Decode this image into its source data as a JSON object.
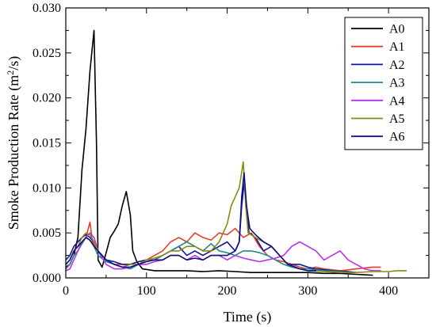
{
  "chart_data": {
    "type": "line",
    "xlabel": "Time (s)",
    "ylabel": "Smoke Production Rate (m",
    "ylabel_sup": "2",
    "ylabel_tail": "/s)",
    "xlim": [
      0,
      450
    ],
    "ylim": [
      0,
      0.03
    ],
    "x_ticks": [
      0,
      100,
      200,
      300,
      400
    ],
    "x_tick_labels": [
      "0",
      "100",
      "200",
      "300",
      "400"
    ],
    "y_ticks": [
      0.0,
      0.005,
      0.01,
      0.015,
      0.02,
      0.025,
      0.03
    ],
    "y_tick_labels": [
      "0.000",
      "0.005",
      "0.010",
      "0.015",
      "0.020",
      "0.025",
      "0.030"
    ],
    "grid": false,
    "legend_position": "top-right",
    "series": [
      {
        "name": "A0",
        "color": "#000000",
        "points": [
          [
            0,
            0.0012
          ],
          [
            5,
            0.0015
          ],
          [
            10,
            0.0025
          ],
          [
            15,
            0.0045
          ],
          [
            20,
            0.012
          ],
          [
            25,
            0.0165
          ],
          [
            30,
            0.023
          ],
          [
            35,
            0.0275
          ],
          [
            38,
            0.015
          ],
          [
            40,
            0.002
          ],
          [
            45,
            0.0012
          ],
          [
            50,
            0.0028
          ],
          [
            55,
            0.0045
          ],
          [
            60,
            0.0052
          ],
          [
            65,
            0.006
          ],
          [
            70,
            0.008
          ],
          [
            75,
            0.0096
          ],
          [
            80,
            0.007
          ],
          [
            83,
            0.003
          ],
          [
            88,
            0.0018
          ],
          [
            95,
            0.001
          ],
          [
            110,
            0.0008
          ],
          [
            130,
            0.0008
          ],
          [
            150,
            0.0008
          ],
          [
            170,
            0.0007
          ],
          [
            190,
            0.0008
          ],
          [
            210,
            0.0007
          ],
          [
            230,
            0.0006
          ],
          [
            260,
            0.0006
          ],
          [
            290,
            0.0006
          ],
          [
            300,
            0.0006
          ],
          [
            320,
            0.0005
          ],
          [
            340,
            0.0005
          ],
          [
            360,
            0.0004
          ],
          [
            380,
            0.0003
          ]
        ]
      },
      {
        "name": "A1",
        "color": "#e0402a",
        "points": [
          [
            0,
            0.001
          ],
          [
            5,
            0.0015
          ],
          [
            10,
            0.0025
          ],
          [
            15,
            0.003
          ],
          [
            20,
            0.004
          ],
          [
            25,
            0.0045
          ],
          [
            30,
            0.0062
          ],
          [
            33,
            0.004
          ],
          [
            36,
            0.0035
          ],
          [
            40,
            0.003
          ],
          [
            45,
            0.0025
          ],
          [
            50,
            0.002
          ],
          [
            60,
            0.0015
          ],
          [
            70,
            0.0015
          ],
          [
            80,
            0.0015
          ],
          [
            90,
            0.0018
          ],
          [
            100,
            0.002
          ],
          [
            110,
            0.0025
          ],
          [
            120,
            0.003
          ],
          [
            130,
            0.004
          ],
          [
            140,
            0.0045
          ],
          [
            150,
            0.004
          ],
          [
            160,
            0.005
          ],
          [
            170,
            0.0045
          ],
          [
            180,
            0.0042
          ],
          [
            190,
            0.005
          ],
          [
            200,
            0.0048
          ],
          [
            210,
            0.0055
          ],
          [
            220,
            0.0045
          ],
          [
            230,
            0.005
          ],
          [
            240,
            0.0035
          ],
          [
            250,
            0.0025
          ],
          [
            260,
            0.002
          ],
          [
            270,
            0.0018
          ],
          [
            280,
            0.0015
          ],
          [
            290,
            0.0012
          ],
          [
            300,
            0.001
          ],
          [
            310,
            0.0012
          ],
          [
            320,
            0.001
          ],
          [
            340,
            0.0008
          ],
          [
            360,
            0.001
          ],
          [
            380,
            0.0012
          ],
          [
            390,
            0.0012
          ]
        ]
      },
      {
        "name": "A2",
        "color": "#1414a0",
        "points": [
          [
            0,
            0.002
          ],
          [
            5,
            0.0025
          ],
          [
            10,
            0.0035
          ],
          [
            15,
            0.004
          ],
          [
            20,
            0.0045
          ],
          [
            25,
            0.0048
          ],
          [
            30,
            0.0045
          ],
          [
            35,
            0.004
          ],
          [
            40,
            0.003
          ],
          [
            50,
            0.002
          ],
          [
            60,
            0.0018
          ],
          [
            70,
            0.0015
          ],
          [
            80,
            0.0015
          ],
          [
            90,
            0.0018
          ],
          [
            100,
            0.002
          ],
          [
            110,
            0.002
          ],
          [
            120,
            0.0025
          ],
          [
            130,
            0.003
          ],
          [
            140,
            0.0035
          ],
          [
            150,
            0.0025
          ],
          [
            160,
            0.003
          ],
          [
            170,
            0.0025
          ],
          [
            180,
            0.003
          ],
          [
            190,
            0.0035
          ],
          [
            200,
            0.004
          ],
          [
            205,
            0.0035
          ],
          [
            210,
            0.003
          ],
          [
            215,
            0.004
          ],
          [
            218,
            0.008
          ],
          [
            221,
            0.0105
          ],
          [
            224,
            0.008
          ],
          [
            227,
            0.005
          ],
          [
            235,
            0.0045
          ],
          [
            245,
            0.003
          ],
          [
            255,
            0.0035
          ],
          [
            265,
            0.0025
          ],
          [
            275,
            0.0015
          ],
          [
            290,
            0.0015
          ],
          [
            300,
            0.0012
          ],
          [
            310,
            0.001
          ],
          [
            330,
            0.0008
          ],
          [
            350,
            0.0007
          ],
          [
            360,
            0.0006
          ]
        ]
      },
      {
        "name": "A3",
        "color": "#1f8a8a",
        "points": [
          [
            0,
            0.001
          ],
          [
            5,
            0.0015
          ],
          [
            10,
            0.0025
          ],
          [
            15,
            0.003
          ],
          [
            20,
            0.0038
          ],
          [
            25,
            0.0045
          ],
          [
            30,
            0.0042
          ],
          [
            35,
            0.0035
          ],
          [
            40,
            0.0025
          ],
          [
            50,
            0.0018
          ],
          [
            60,
            0.0015
          ],
          [
            70,
            0.0012
          ],
          [
            80,
            0.001
          ],
          [
            90,
            0.0015
          ],
          [
            100,
            0.002
          ],
          [
            110,
            0.002
          ],
          [
            120,
            0.0025
          ],
          [
            130,
            0.003
          ],
          [
            140,
            0.0035
          ],
          [
            150,
            0.004
          ],
          [
            160,
            0.0035
          ],
          [
            170,
            0.003
          ],
          [
            180,
            0.0038
          ],
          [
            190,
            0.003
          ],
          [
            200,
            0.0028
          ],
          [
            210,
            0.0025
          ],
          [
            220,
            0.003
          ],
          [
            230,
            0.003
          ],
          [
            240,
            0.0028
          ],
          [
            250,
            0.0025
          ],
          [
            260,
            0.002
          ],
          [
            270,
            0.0015
          ],
          [
            280,
            0.0012
          ],
          [
            290,
            0.001
          ],
          [
            300,
            0.001
          ],
          [
            320,
            0.0008
          ],
          [
            340,
            0.0007
          ],
          [
            350,
            0.0006
          ]
        ]
      },
      {
        "name": "A4",
        "color": "#bb2ff0",
        "points": [
          [
            0,
            0.0008
          ],
          [
            5,
            0.001
          ],
          [
            10,
            0.002
          ],
          [
            15,
            0.003
          ],
          [
            20,
            0.004
          ],
          [
            25,
            0.0045
          ],
          [
            30,
            0.005
          ],
          [
            35,
            0.0045
          ],
          [
            40,
            0.003
          ],
          [
            50,
            0.0015
          ],
          [
            60,
            0.001
          ],
          [
            70,
            0.001
          ],
          [
            80,
            0.0012
          ],
          [
            90,
            0.0015
          ],
          [
            100,
            0.0015
          ],
          [
            110,
            0.0018
          ],
          [
            120,
            0.002
          ],
          [
            130,
            0.0025
          ],
          [
            140,
            0.0025
          ],
          [
            150,
            0.002
          ],
          [
            160,
            0.0025
          ],
          [
            170,
            0.002
          ],
          [
            180,
            0.0025
          ],
          [
            190,
            0.0025
          ],
          [
            200,
            0.002
          ],
          [
            210,
            0.0025
          ],
          [
            220,
            0.0022
          ],
          [
            230,
            0.002
          ],
          [
            240,
            0.0018
          ],
          [
            250,
            0.002
          ],
          [
            260,
            0.0022
          ],
          [
            270,
            0.0025
          ],
          [
            280,
            0.0035
          ],
          [
            290,
            0.004
          ],
          [
            300,
            0.0035
          ],
          [
            310,
            0.003
          ],
          [
            320,
            0.002
          ],
          [
            330,
            0.0025
          ],
          [
            340,
            0.003
          ],
          [
            350,
            0.002
          ],
          [
            360,
            0.0015
          ],
          [
            370,
            0.001
          ],
          [
            380,
            0.0008
          ],
          [
            390,
            0.0008
          ]
        ]
      },
      {
        "name": "A5",
        "color": "#8a8a10",
        "points": [
          [
            0,
            0.0015
          ],
          [
            5,
            0.002
          ],
          [
            10,
            0.003
          ],
          [
            15,
            0.0035
          ],
          [
            20,
            0.0045
          ],
          [
            25,
            0.005
          ],
          [
            30,
            0.0048
          ],
          [
            35,
            0.004
          ],
          [
            40,
            0.003
          ],
          [
            50,
            0.002
          ],
          [
            60,
            0.0015
          ],
          [
            70,
            0.0012
          ],
          [
            80,
            0.0015
          ],
          [
            90,
            0.0015
          ],
          [
            100,
            0.002
          ],
          [
            110,
            0.0022
          ],
          [
            120,
            0.0025
          ],
          [
            130,
            0.003
          ],
          [
            140,
            0.003
          ],
          [
            150,
            0.0035
          ],
          [
            160,
            0.0035
          ],
          [
            170,
            0.003
          ],
          [
            180,
            0.003
          ],
          [
            190,
            0.004
          ],
          [
            200,
            0.006
          ],
          [
            205,
            0.008
          ],
          [
            210,
            0.009
          ],
          [
            215,
            0.01
          ],
          [
            220,
            0.0129
          ],
          [
            223,
            0.008
          ],
          [
            226,
            0.005
          ],
          [
            235,
            0.0045
          ],
          [
            245,
            0.004
          ],
          [
            255,
            0.0035
          ],
          [
            265,
            0.0025
          ],
          [
            275,
            0.0015
          ],
          [
            290,
            0.001
          ],
          [
            300,
            0.0008
          ],
          [
            320,
            0.0007
          ],
          [
            340,
            0.0006
          ],
          [
            360,
            0.0006
          ],
          [
            380,
            0.0007
          ],
          [
            400,
            0.0007
          ],
          [
            410,
            0.0008
          ],
          [
            422,
            0.0008
          ]
        ]
      },
      {
        "name": "A6",
        "color": "#101080",
        "points": [
          [
            0,
            0.0015
          ],
          [
            5,
            0.002
          ],
          [
            10,
            0.003
          ],
          [
            15,
            0.0035
          ],
          [
            20,
            0.004
          ],
          [
            25,
            0.0045
          ],
          [
            30,
            0.0042
          ],
          [
            35,
            0.0035
          ],
          [
            40,
            0.003
          ],
          [
            50,
            0.002
          ],
          [
            60,
            0.0015
          ],
          [
            70,
            0.0012
          ],
          [
            80,
            0.0012
          ],
          [
            90,
            0.0015
          ],
          [
            100,
            0.0018
          ],
          [
            110,
            0.002
          ],
          [
            120,
            0.002
          ],
          [
            130,
            0.0025
          ],
          [
            140,
            0.0025
          ],
          [
            150,
            0.002
          ],
          [
            160,
            0.0022
          ],
          [
            170,
            0.002
          ],
          [
            180,
            0.0025
          ],
          [
            190,
            0.0025
          ],
          [
            200,
            0.0025
          ],
          [
            210,
            0.003
          ],
          [
            215,
            0.004
          ],
          [
            218,
            0.009
          ],
          [
            221,
            0.0117
          ],
          [
            224,
            0.008
          ],
          [
            228,
            0.0055
          ],
          [
            235,
            0.0048
          ],
          [
            245,
            0.004
          ],
          [
            255,
            0.0035
          ],
          [
            265,
            0.0025
          ],
          [
            275,
            0.0015
          ],
          [
            290,
            0.001
          ],
          [
            300,
            0.0008
          ],
          [
            310,
            0.0008
          ]
        ]
      }
    ]
  }
}
